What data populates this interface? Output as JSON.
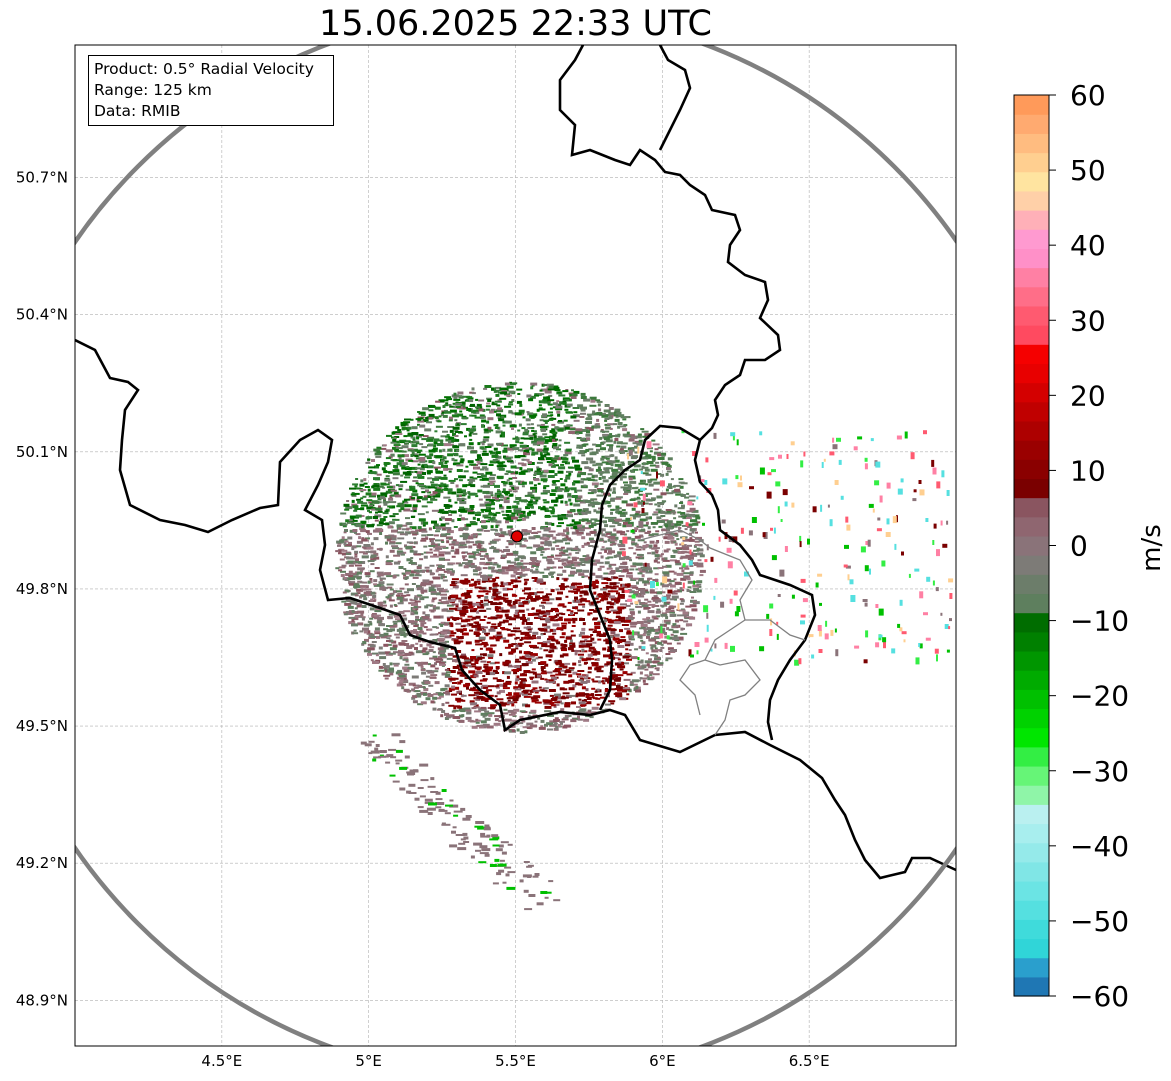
{
  "title": "15.06.2025 22:33 UTC",
  "info": {
    "product": "Product: 0.5° Radial Velocity",
    "range": "Range: 125 km",
    "source": "Data: RMIB"
  },
  "map": {
    "lon_range": [
      4.0,
      7.0
    ],
    "lat_range": [
      48.8,
      50.99
    ],
    "lon_ticks": [
      {
        "value": 4.5,
        "label": "4.5°E"
      },
      {
        "value": 5.0,
        "label": "5°E"
      },
      {
        "value": 5.5,
        "label": "5.5°E"
      },
      {
        "value": 6.0,
        "label": "6°E"
      },
      {
        "value": 6.5,
        "label": "6.5°E"
      }
    ],
    "lat_ticks": [
      {
        "value": 50.7,
        "label": "50.7°N"
      },
      {
        "value": 50.4,
        "label": "50.4°N"
      },
      {
        "value": 50.1,
        "label": "50.1°N"
      },
      {
        "value": 49.8,
        "label": "49.8°N"
      },
      {
        "value": 49.5,
        "label": "49.5°N"
      },
      {
        "value": 49.2,
        "label": "49.2°N"
      },
      {
        "value": 48.9,
        "label": "48.9°N"
      }
    ],
    "radar_site": {
      "lon": 5.505,
      "lat": 49.915
    },
    "range_ring_km": 125
  },
  "colorbar": {
    "label": "m/s",
    "min": -60,
    "max": 60,
    "ticks": [
      {
        "value": 60,
        "label": "60"
      },
      {
        "value": 50,
        "label": "50"
      },
      {
        "value": 40,
        "label": "40"
      },
      {
        "value": 30,
        "label": "30"
      },
      {
        "value": 20,
        "label": "20"
      },
      {
        "value": 10,
        "label": "10"
      },
      {
        "value": 0,
        "label": "0"
      },
      {
        "value": -10,
        "label": "−10"
      },
      {
        "value": -20,
        "label": "−20"
      },
      {
        "value": -30,
        "label": "−30"
      },
      {
        "value": -40,
        "label": "−40"
      },
      {
        "value": -50,
        "label": "−50"
      },
      {
        "value": -60,
        "label": "−60"
      }
    ],
    "colors": [
      "#1f77b4",
      "#2a9fcd",
      "#30d5d8",
      "#3fdbdb",
      "#55e0e0",
      "#6be4e4",
      "#80e6e6",
      "#95eaea",
      "#a8eeee",
      "#baf0f0",
      "#8ff5a8",
      "#66f577",
      "#33ee44",
      "#00e600",
      "#00d200",
      "#00c000",
      "#00ab00",
      "#009600",
      "#008000",
      "#006d00",
      "#5e7f5e",
      "#6c7d6a",
      "#7d7b77",
      "#8a7379",
      "#8f6670",
      "#8a5560",
      "#7a0000",
      "#8a0000",
      "#9a0000",
      "#ad0000",
      "#c00000",
      "#d40000",
      "#e80000",
      "#f50000",
      "#ff4a60",
      "#ff5a70",
      "#ff6e88",
      "#ff80a4",
      "#ff90c8",
      "#ff9ad0",
      "#ffb0b8",
      "#ffd0a8",
      "#ffe4a0",
      "#ffcf90",
      "#ffbc80",
      "#ffaa70",
      "#ff9a5a"
    ]
  }
}
